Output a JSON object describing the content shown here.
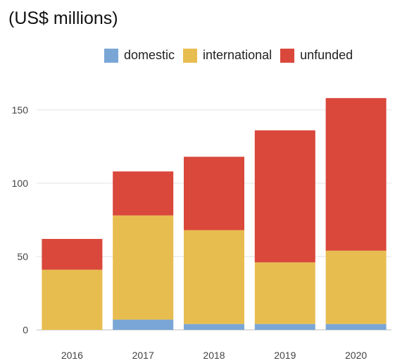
{
  "chart_data": {
    "type": "bar",
    "stacked": true,
    "title": "(US$ millions)",
    "categories": [
      "2016",
      "2017",
      "2018",
      "2019",
      "2020"
    ],
    "series": [
      {
        "name": "domestic",
        "color": "#7aa6d6",
        "values": [
          0,
          7,
          4,
          4,
          4
        ]
      },
      {
        "name": "international",
        "color": "#e8bd50",
        "values": [
          41,
          71,
          64,
          42,
          50
        ]
      },
      {
        "name": "unfunded",
        "color": "#d9483b",
        "values": [
          21,
          30,
          50,
          90,
          104
        ]
      }
    ],
    "ylim": [
      0,
      160
    ],
    "yticks": [
      0,
      50,
      100,
      150
    ],
    "grid": true,
    "legend_position": "top-center"
  }
}
